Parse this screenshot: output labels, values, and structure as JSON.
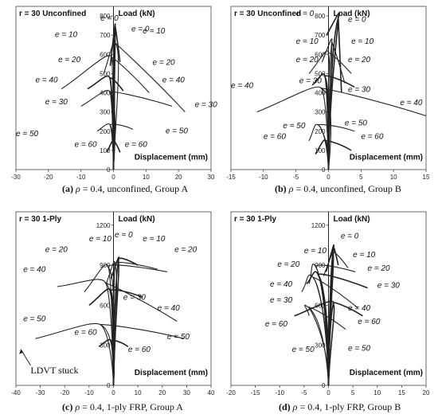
{
  "chart_data": [
    {
      "type": "line",
      "title": "r = 30  Unconfined",
      "ylabel": "Load (kN)",
      "xlabel": "Displacement (mm)",
      "xlim": [
        -30,
        30
      ],
      "ylim": [
        0,
        850
      ],
      "xticks": [
        -30,
        -20,
        -10,
        0,
        10,
        20,
        30
      ],
      "yticks": [
        0,
        100,
        200,
        300,
        400,
        500,
        600,
        700,
        800
      ],
      "caption": {
        "letter": "(a)",
        "symbol": "ρ",
        "text": " = 0.4, unconfined, Group A"
      },
      "series": [
        {
          "name": "e = 0",
          "peak": [
            0.5,
            740
          ],
          "end_left": [
            -1,
            540
          ],
          "end_right": [
            2,
            560
          ]
        },
        {
          "name": "e = 10",
          "peak": [
            0.5,
            660
          ],
          "end_left": [
            -3,
            500
          ],
          "end_right": [
            22,
            300
          ]
        },
        {
          "name": "e = 20",
          "peak": [
            -0.5,
            580
          ],
          "end_left": [
            -16,
            420
          ],
          "end_right": [
            11,
            400
          ]
        },
        {
          "name": "e = 40",
          "peak": [
            -1,
            470
          ],
          "end_left": [
            -8,
            420
          ],
          "end_right": [
            3,
            410
          ]
        },
        {
          "name": "e = 30",
          "peak": [
            -1,
            400
          ],
          "end_left": [
            -10,
            330
          ],
          "end_right": [
            18,
            330
          ]
        },
        {
          "name": "e = 50",
          "peak": [
            -1,
            230
          ],
          "end_left": [
            -5,
            200
          ],
          "end_right": [
            6,
            210
          ]
        },
        {
          "name": "e = 60",
          "peak": [
            0,
            150
          ],
          "end_left": [
            -2,
            90
          ],
          "end_right": [
            2,
            90
          ]
        }
      ],
      "labels": [
        {
          "text": "e = 0",
          "x": -4,
          "y": 775
        },
        {
          "text": "e = 0",
          "x": 5.5,
          "y": 720
        },
        {
          "text": "e = 10",
          "x": -18,
          "y": 690
        },
        {
          "text": "e = 10",
          "x": 9,
          "y": 710
        },
        {
          "text": "e = 20",
          "x": -17,
          "y": 560
        },
        {
          "text": "e = 20",
          "x": 12,
          "y": 545
        },
        {
          "text": "e = 40",
          "x": -24,
          "y": 455
        },
        {
          "text": "e = 40",
          "x": 15,
          "y": 455
        },
        {
          "text": "e = 30",
          "x": -21,
          "y": 340
        },
        {
          "text": "e = 30",
          "x": 25,
          "y": 325
        },
        {
          "text": "e = 50",
          "x": -30,
          "y": 175
        },
        {
          "text": "e = 50",
          "x": 16,
          "y": 188
        },
        {
          "text": "e = 60",
          "x": -12,
          "y": 118
        },
        {
          "text": "e = 60",
          "x": 3.5,
          "y": 118
        }
      ]
    },
    {
      "type": "line",
      "title": "r = 30  Unconfined",
      "ylabel": "Load (kN)",
      "xlabel": "Displacement (mm)",
      "xlim": [
        -15,
        15
      ],
      "ylim": [
        0,
        850
      ],
      "xticks": [
        -15,
        -10,
        -5,
        0,
        5,
        10,
        15
      ],
      "yticks": [
        0,
        100,
        200,
        300,
        400,
        500,
        600,
        700,
        800
      ],
      "caption": {
        "letter": "(b)",
        "symbol": "ρ",
        "text": " = 0.4, unconfined, Group B"
      },
      "series": [
        {
          "name": "e = 0",
          "peak": [
            1.5,
            790
          ],
          "end_left": [
            -0.3,
            700
          ],
          "end_right": [
            2,
            400
          ]
        },
        {
          "name": "e = 10",
          "peak": [
            0.5,
            660
          ],
          "end_left": [
            -1,
            560
          ],
          "end_right": [
            2.5,
            450
          ]
        },
        {
          "name": "e = 20",
          "peak": [
            0,
            600
          ],
          "end_left": [
            -3,
            500
          ],
          "end_right": [
            3.5,
            500
          ]
        },
        {
          "name": "e = 30",
          "peak": [
            -0.5,
            480
          ],
          "end_left": [
            -2.5,
            440
          ],
          "end_right": [
            4,
            430
          ]
        },
        {
          "name": "e = 40",
          "peak": [
            -1,
            420
          ],
          "end_left": [
            -11,
            300
          ],
          "end_right": [
            15,
            280
          ]
        },
        {
          "name": "e = 50",
          "peak": [
            -1.5,
            230
          ],
          "end_left": [
            -3,
            150
          ],
          "end_right": [
            4,
            200
          ]
        },
        {
          "name": "e = 60",
          "peak": [
            -0.5,
            150
          ],
          "end_left": [
            -2,
            80
          ],
          "end_right": [
            3.5,
            100
          ]
        }
      ],
      "labels": [
        {
          "text": "e = 0",
          "x": -5,
          "y": 800
        },
        {
          "text": "e = 0",
          "x": 3,
          "y": 770
        },
        {
          "text": "e = 10",
          "x": -5,
          "y": 655
        },
        {
          "text": "e = 10",
          "x": 3.5,
          "y": 655
        },
        {
          "text": "e = 20",
          "x": -5,
          "y": 560
        },
        {
          "text": "e = 20",
          "x": 3,
          "y": 560
        },
        {
          "text": "e = 40",
          "x": -15,
          "y": 425
        },
        {
          "text": "e = 30",
          "x": -4.5,
          "y": 450
        },
        {
          "text": "e = 30",
          "x": 3,
          "y": 405
        },
        {
          "text": "e = 40",
          "x": 11,
          "y": 335
        },
        {
          "text": "e = 50",
          "x": -7,
          "y": 215
        },
        {
          "text": "e = 50",
          "x": 2.5,
          "y": 230
        },
        {
          "text": "e = 60",
          "x": -10,
          "y": 160
        },
        {
          "text": "e = 60",
          "x": 5,
          "y": 160
        }
      ]
    },
    {
      "type": "line",
      "title": "r = 30  1-Ply",
      "ylabel": "Load (kN)",
      "xlabel": "Displacement (mm)",
      "xlim": [
        -40,
        40
      ],
      "ylim": [
        0,
        1300
      ],
      "xticks": [
        -40,
        -30,
        -20,
        -10,
        0,
        10,
        20,
        30,
        40
      ],
      "yticks": [
        0,
        300,
        600,
        900,
        1200
      ],
      "caption": {
        "letter": "(c)",
        "symbol": "ρ",
        "text": " = 0.4, 1-ply FRP, Group A"
      },
      "series": [
        {
          "name": "e = 0",
          "peak": [
            2,
            930
          ],
          "end_left": [
            -1,
            800
          ],
          "end_right": [
            10,
            900
          ]
        },
        {
          "name": "e = 10",
          "peak": [
            0.5,
            900
          ],
          "end_left": [
            -3,
            760
          ],
          "end_right": [
            18,
            870
          ]
        },
        {
          "name": "e = 20",
          "peak": [
            -2,
            880
          ],
          "end_left": [
            -12,
            700
          ],
          "end_right": [
            22,
            850
          ]
        },
        {
          "name": "e = 30",
          "peak": [
            -1,
            700
          ],
          "end_left": [
            -10,
            600
          ],
          "end_right": [
            12,
            660
          ]
        },
        {
          "name": "e = 40",
          "peak": [
            -3,
            760
          ],
          "end_left": [
            -23,
            740
          ],
          "end_right": [
            26,
            480
          ]
        },
        {
          "name": "e = 50",
          "peak": [
            -5,
            450
          ],
          "end_left": [
            -32,
            350
          ],
          "end_right": [
            29,
            350
          ]
        },
        {
          "name": "e = 60",
          "peak": [
            -1,
            330
          ],
          "end_left": [
            -6,
            290
          ],
          "end_right": [
            6,
            290
          ]
        }
      ],
      "labels": [
        {
          "text": "e = 0",
          "x": 0.5,
          "y": 1110
        },
        {
          "text": "e = 10",
          "x": -10,
          "y": 1080
        },
        {
          "text": "e = 10",
          "x": 12,
          "y": 1080
        },
        {
          "text": "e = 20",
          "x": -28,
          "y": 1000
        },
        {
          "text": "e = 20",
          "x": 25,
          "y": 1000
        },
        {
          "text": "e = 40",
          "x": -37,
          "y": 850
        },
        {
          "text": "e = 30",
          "x": 4,
          "y": 640
        },
        {
          "text": "e = 40",
          "x": 18,
          "y": 560
        },
        {
          "text": "e = 50",
          "x": -37,
          "y": 480
        },
        {
          "text": "e = 50",
          "x": 22,
          "y": 345
        },
        {
          "text": "e = 60",
          "x": -16,
          "y": 380
        },
        {
          "text": "e = 60",
          "x": 6,
          "y": 250
        }
      ],
      "annotation": {
        "text": "LDVT stuck",
        "x": -34,
        "y": 90
      }
    },
    {
      "type": "line",
      "title": "r = 30  1-Ply",
      "ylabel": "Load (kN)",
      "xlabel": "Displacement (mm)",
      "xlim": [
        -20,
        20
      ],
      "ylim": [
        0,
        1300
      ],
      "xticks": [
        -20,
        -15,
        -10,
        -5,
        0,
        5,
        10,
        15,
        20
      ],
      "yticks": [
        0,
        300,
        600,
        900,
        1200
      ],
      "caption": {
        "letter": "(d)",
        "symbol": "ρ",
        "text": " = 0.4, 1-ply FRP, Group B"
      },
      "series": [
        {
          "name": "e = 0",
          "peak": [
            1,
            1020
          ],
          "end_left": [
            -0.5,
            850
          ],
          "end_right": [
            2,
            900
          ]
        },
        {
          "name": "e = 10",
          "peak": [
            1,
            980
          ],
          "end_left": [
            -1,
            820
          ],
          "end_right": [
            4,
            880
          ]
        },
        {
          "name": "e = 20",
          "peak": [
            -2.5,
            880
          ],
          "end_left": [
            -4,
            760
          ],
          "end_right": [
            5.5,
            850
          ]
        },
        {
          "name": "e = 30",
          "peak": [
            -2,
            820
          ],
          "end_left": [
            -4.5,
            760
          ],
          "end_right": [
            8,
            730
          ]
        },
        {
          "name": "e = 40",
          "peak": [
            -3,
            800
          ],
          "end_left": [
            -5.5,
            700
          ],
          "end_right": [
            6,
            580
          ]
        },
        {
          "name": "e = 50",
          "peak": [
            -4,
            580
          ],
          "end_left": [
            -4,
            520
          ],
          "end_right": [
            3.5,
            420
          ]
        },
        {
          "name": "e = 60",
          "peak": [
            1,
            610
          ],
          "end_left": [
            -7,
            520
          ],
          "end_right": [
            7,
            520
          ]
        }
      ],
      "labels": [
        {
          "text": "e = 0",
          "x": 2.5,
          "y": 1100
        },
        {
          "text": "e = 10",
          "x": -5,
          "y": 990
        },
        {
          "text": "e = 10",
          "x": 5,
          "y": 960
        },
        {
          "text": "e = 20",
          "x": -10.5,
          "y": 890
        },
        {
          "text": "e = 20",
          "x": 8,
          "y": 860
        },
        {
          "text": "e = 40",
          "x": -12,
          "y": 740
        },
        {
          "text": "e = 30",
          "x": 10,
          "y": 730
        },
        {
          "text": "e = 30",
          "x": -12,
          "y": 620
        },
        {
          "text": "e = 40",
          "x": 4,
          "y": 560
        },
        {
          "text": "e = 60",
          "x": -13,
          "y": 440
        },
        {
          "text": "e = 60",
          "x": 6,
          "y": 460
        },
        {
          "text": "e = 50",
          "x": -7.5,
          "y": 250
        },
        {
          "text": "e = 50",
          "x": 4,
          "y": 260
        }
      ]
    }
  ]
}
